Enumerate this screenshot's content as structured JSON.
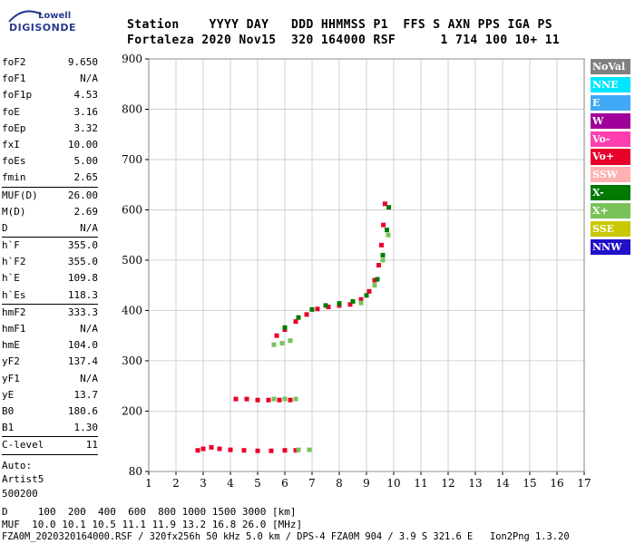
{
  "logo": {
    "line1": "Lowell",
    "line2": "DIGISONDE"
  },
  "header": {
    "labels": "Station    YYYY DAY   DDD HHMMSS P1  FFS S AXN PPS IGA PS",
    "values": "Fortaleza 2020 Nov15  320 164000 RSF      1 714 100 10+ 11"
  },
  "params": {
    "group1": [
      {
        "k": "foF2",
        "v": "9.650"
      },
      {
        "k": "foF1",
        "v": "N/A"
      },
      {
        "k": "foF1p",
        "v": "4.53"
      },
      {
        "k": "foE",
        "v": "3.16"
      },
      {
        "k": "foEp",
        "v": "3.32"
      },
      {
        "k": "fxI",
        "v": "10.00"
      },
      {
        "k": "foEs",
        "v": "5.00"
      },
      {
        "k": "fmin",
        "v": "2.65"
      }
    ],
    "group2": [
      {
        "k": "MUF(D)",
        "v": "26.00"
      },
      {
        "k": "M(D)",
        "v": "2.69"
      },
      {
        "k": "D",
        "v": "N/A"
      }
    ],
    "group3": [
      {
        "k": "h`F",
        "v": "355.0"
      },
      {
        "k": "h`F2",
        "v": "355.0"
      },
      {
        "k": "h`E",
        "v": "109.8"
      },
      {
        "k": "h`Es",
        "v": "118.3"
      }
    ],
    "group4": [
      {
        "k": "hmF2",
        "v": "333.3"
      },
      {
        "k": "hmF1",
        "v": "N/A"
      },
      {
        "k": "hmE",
        "v": "104.0"
      },
      {
        "k": "yF2",
        "v": "137.4"
      },
      {
        "k": "yF1",
        "v": "N/A"
      },
      {
        "k": "yE",
        "v": "13.7"
      },
      {
        "k": "B0",
        "v": "180.6"
      },
      {
        "k": "B1",
        "v": "1.30"
      }
    ],
    "group5": [
      {
        "k": "C-level",
        "v": "11"
      }
    ],
    "auto": [
      "Auto:",
      "Artist5",
      "500200"
    ]
  },
  "legend": [
    {
      "label": "NoVal",
      "color": "#808080"
    },
    {
      "label": "NNE",
      "color": "#00e5ff"
    },
    {
      "label": "E",
      "color": "#3fa9f5"
    },
    {
      "label": "W",
      "color": "#a0009a"
    },
    {
      "label": "Vo-",
      "color": "#ff3fb0"
    },
    {
      "label": "Vo+",
      "color": "#e8002a"
    },
    {
      "label": "SSW",
      "color": "#ffb0b0"
    },
    {
      "label": "X-",
      "color": "#007a00"
    },
    {
      "label": "X+",
      "color": "#79c25a"
    },
    {
      "label": "SSE",
      "color": "#c8c800"
    },
    {
      "label": "NNW",
      "color": "#2010c8"
    }
  ],
  "footer": {
    "line1": "D     100  200  400  600  800 1000 1500 3000 [km]",
    "line2": "MUF  10.0 10.1 10.5 11.1 11.9 13.2 16.8 26.0 [MHz]",
    "line3": "FZA0M_2020320164000.RSF / 320fx256h 50 kHz 5.0 km / DPS-4 FZA0M 904 / 3.9 S 321.6 E   Ion2Png 1.3.20"
  },
  "chart_data": {
    "type": "scatter",
    "xlim": [
      1,
      17
    ],
    "ylim": [
      80,
      900
    ],
    "x_ticks": [
      "1",
      "2",
      "3",
      "4",
      "5",
      "6",
      "7",
      "8",
      "9",
      "10",
      "11",
      "12",
      "13",
      "14",
      "15",
      "16",
      "17"
    ],
    "y_ticks": [
      "80",
      "200",
      "300",
      "400",
      "500",
      "600",
      "700",
      "800",
      "900"
    ],
    "grid": true,
    "series": [
      {
        "name": "Vo+",
        "color": "#e8002a",
        "points": [
          [
            2.8,
            122
          ],
          [
            3.0,
            125
          ],
          [
            3.3,
            128
          ],
          [
            3.6,
            125
          ],
          [
            4.0,
            123
          ],
          [
            4.5,
            122
          ],
          [
            5.0,
            121
          ],
          [
            5.5,
            121
          ],
          [
            6.0,
            122
          ],
          [
            6.4,
            122
          ],
          [
            4.2,
            224
          ],
          [
            4.6,
            224
          ],
          [
            5.0,
            222
          ],
          [
            5.4,
            222
          ],
          [
            5.8,
            222
          ],
          [
            6.2,
            222
          ],
          [
            5.7,
            350
          ],
          [
            6.0,
            362
          ],
          [
            6.4,
            378
          ],
          [
            6.8,
            392
          ],
          [
            7.2,
            403
          ],
          [
            7.6,
            407
          ],
          [
            8.0,
            410
          ],
          [
            8.4,
            412
          ],
          [
            8.8,
            422
          ],
          [
            9.1,
            438
          ],
          [
            9.3,
            460
          ],
          [
            9.45,
            490
          ],
          [
            9.55,
            530
          ],
          [
            9.62,
            570
          ],
          [
            9.68,
            612
          ]
        ]
      },
      {
        "name": "X-",
        "color": "#007a00",
        "points": [
          [
            6.0,
            366
          ],
          [
            6.5,
            386
          ],
          [
            7.0,
            402
          ],
          [
            7.5,
            410
          ],
          [
            8.0,
            414
          ],
          [
            8.5,
            418
          ],
          [
            9.0,
            430
          ],
          [
            9.4,
            462
          ],
          [
            9.6,
            510
          ],
          [
            9.75,
            560
          ],
          [
            9.82,
            605
          ]
        ]
      },
      {
        "name": "X+",
        "color": "#79c25a",
        "points": [
          [
            5.6,
            332
          ],
          [
            5.9,
            335
          ],
          [
            6.2,
            340
          ],
          [
            6.5,
            123
          ],
          [
            6.9,
            123
          ],
          [
            5.6,
            224
          ],
          [
            6.0,
            224
          ],
          [
            6.4,
            224
          ],
          [
            8.8,
            415
          ],
          [
            9.3,
            450
          ],
          [
            9.6,
            500
          ],
          [
            9.8,
            550
          ]
        ]
      }
    ]
  }
}
